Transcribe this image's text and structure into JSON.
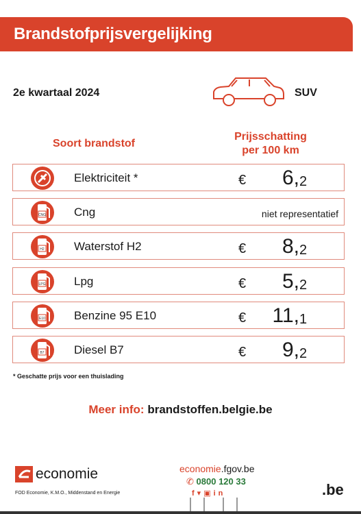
{
  "header": {
    "title": "Brandstofprijsvergelijking"
  },
  "period": "2e kwartaal 2024",
  "vehicle": "SUV",
  "table": {
    "headers": [
      "Soort brandstof",
      "Prijsschatting",
      "per 100 km"
    ],
    "rows": [
      {
        "name": "Elektriciteit *",
        "icon_label": "",
        "currency": "€",
        "whole": "6,",
        "fraction": "2"
      },
      {
        "name": "Cng",
        "icon_label": "CNG",
        "note": "niet representatief"
      },
      {
        "name": "Waterstof H2",
        "icon_label": "H2",
        "currency": "€",
        "whole": "8,",
        "fraction": "2"
      },
      {
        "name": "Lpg",
        "icon_label": "LPG",
        "currency": "€",
        "whole": "5,",
        "fraction": "2"
      },
      {
        "name": "Benzine 95 E10",
        "icon_label": "E10",
        "currency": "€",
        "whole": "11,",
        "fraction": "1"
      },
      {
        "name": "Diesel B7",
        "icon_label": "B7",
        "currency": "€",
        "whole": "9,",
        "fraction": "2"
      }
    ]
  },
  "footnote": "* Geschatte prijs voor een thuislading",
  "more_info": {
    "label": "Meer info:",
    "url": "brandstoffen.belgie.be"
  },
  "footer": {
    "logo": "economie",
    "org": "FOD Economie, K.M.O., Middenstand en Energie",
    "site_a": "economie",
    "site_b": ".fgov.be",
    "phone": "0800 120 33",
    "social": [
      "f",
      "in"
    ],
    "be": ".be"
  }
}
